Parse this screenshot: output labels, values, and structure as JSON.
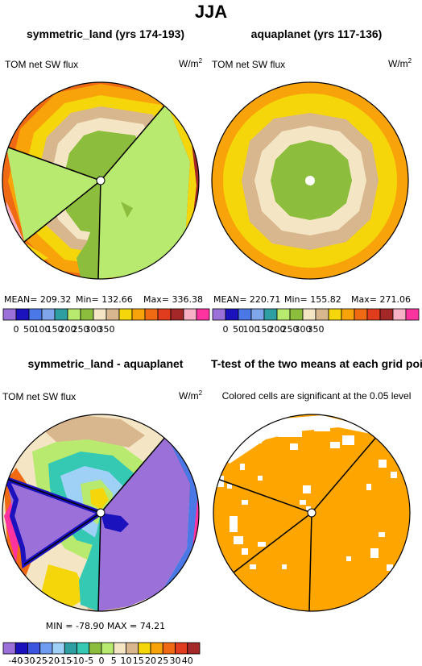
{
  "page_title": "JJA",
  "colors": {
    "seq": [
      "#9b71d9",
      "#1b12bd",
      "#4a78e6",
      "#7fa6ea",
      "#2d9fa3",
      "#b7ea6f",
      "#8cbd3c",
      "#f4e6c5",
      "#d8b68e",
      "#f5d60a",
      "#f8a30a",
      "#f06a13",
      "#e13c1d",
      "#a42828",
      "#f8b0c6",
      "#ff33a0"
    ],
    "diff": [
      "#9b71d9",
      "#1b12bd",
      "#3c55e0",
      "#6f9bf0",
      "#9fd0f5",
      "#2d9fa3",
      "#35c9b3",
      "#8cbd3c",
      "#b7ea6f",
      "#f4e6c5",
      "#d8b68e",
      "#f5d60a",
      "#f8a30a",
      "#f06a13",
      "#e13c1d",
      "#a42828",
      "#f8b0c6",
      "#ff33a0"
    ],
    "significant": "#ffa500"
  },
  "panels": {
    "p1": {
      "title": "symmetric_land (yrs 174-193)",
      "left_label": "TOM net SW flux",
      "units": "W/m",
      "units_sup": "2",
      "mean_label": "MEAN= 209.32",
      "min_label": "Min= 132.66",
      "max_label": "Max= 336.38"
    },
    "p2": {
      "title": "aquaplanet (yrs 117-136)",
      "left_label": "TOM net SW flux",
      "units": "W/m",
      "units_sup": "2",
      "mean_label": "MEAN= 220.71",
      "min_label": "Min= 155.82",
      "max_label": "Max= 271.06"
    },
    "p3": {
      "title": "symmetric_land - aquaplanet",
      "left_label": "TOM net SW flux",
      "units": "W/m",
      "units_sup": "2",
      "minmax_label": "MIN =  -78.90  MAX =   74.21"
    },
    "p4": {
      "title": "T-test of the two means at each grid point",
      "subtitle": "Colored cells are significant at the 0.05 level"
    }
  },
  "chart_data": [
    {
      "type": "heatmap",
      "panel": "symmetric_land",
      "title": "symmetric_land (yrs 174-193)",
      "variable": "TOM net SW flux",
      "units": "W/m2",
      "mean": 209.32,
      "min": 132.66,
      "max": 336.38,
      "colorbar_ticks": [
        0,
        50,
        100,
        150,
        200,
        250,
        300,
        350
      ]
    },
    {
      "type": "heatmap",
      "panel": "aquaplanet",
      "title": "aquaplanet (yrs 117-136)",
      "variable": "TOM net SW flux",
      "units": "W/m2",
      "mean": 220.71,
      "min": 155.82,
      "max": 271.06,
      "colorbar_ticks": [
        0,
        50,
        100,
        150,
        200,
        250,
        300,
        350
      ]
    },
    {
      "type": "heatmap",
      "panel": "difference",
      "title": "symmetric_land - aquaplanet",
      "variable": "TOM net SW flux",
      "units": "W/m2",
      "min": -78.9,
      "max": 74.21,
      "colorbar_ticks": [
        "-40",
        "-30",
        "-25",
        "-20",
        "-15",
        "-10",
        "-5",
        "0",
        "5",
        "10",
        "15",
        "20",
        "25",
        "30",
        "40"
      ]
    },
    {
      "type": "heatmap",
      "panel": "ttest",
      "title": "T-test of the two means at each grid point",
      "note": "Colored cells are significant at the 0.05 level"
    }
  ],
  "cbar1_ticks": [
    "0",
    "50",
    "100",
    "150",
    "200",
    "250",
    "300",
    "350"
  ],
  "cbar2_ticks": [
    "0",
    "50",
    "100",
    "150",
    "200",
    "250",
    "300",
    "350"
  ],
  "cbar3_ticks": [
    "-40",
    "-30",
    "-25",
    "-20",
    "-15",
    "-10",
    "-5",
    "0",
    "5",
    "10",
    "15",
    "20",
    "25",
    "30",
    "40"
  ]
}
